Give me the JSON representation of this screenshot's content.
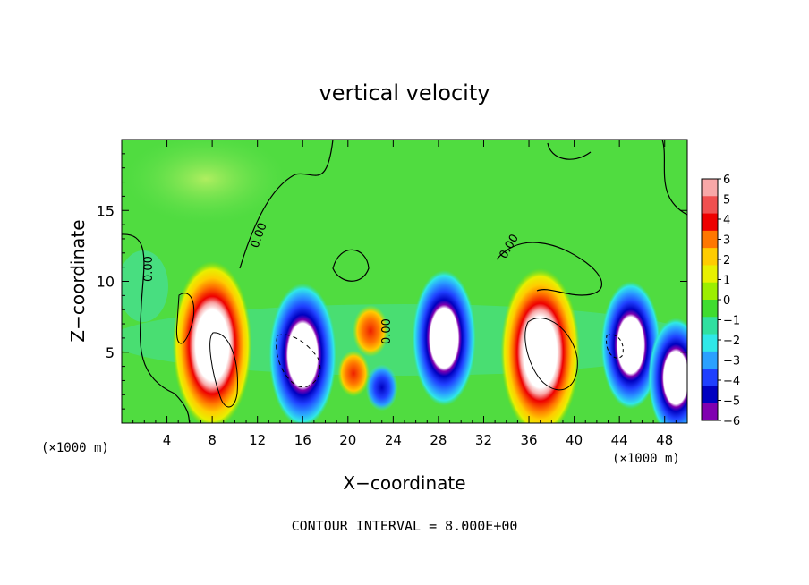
{
  "chart_data": {
    "type": "heatmap",
    "title": "vertical velocity",
    "xlabel": "X−coordinate",
    "ylabel": "Z−coordinate",
    "x_unit_left": "(×1000 m)",
    "x_unit_right": "(×1000 m)",
    "xlim": [
      0,
      50
    ],
    "ylim": [
      0,
      20
    ],
    "x_ticks": [
      4,
      8,
      12,
      16,
      20,
      24,
      28,
      32,
      36,
      40,
      44,
      48
    ],
    "y_ticks": [
      5,
      10,
      15
    ],
    "footer": "CONTOUR INTERVAL = 8.000E+00",
    "contour_label": "0.00",
    "colorbar": {
      "levels": [
        6,
        5,
        4,
        3,
        2,
        1,
        0,
        -1,
        -2,
        -3,
        -4,
        -5,
        -6
      ],
      "level_labels": [
        "6",
        "5",
        "4",
        "3",
        "2",
        "1",
        "0",
        "−1",
        "−2",
        "−3",
        "−4",
        "−5",
        "−6"
      ],
      "colors": [
        "#f8a8a8",
        "#f05050",
        "#ee0000",
        "#ff7700",
        "#ffcc00",
        "#e8f000",
        "#9cee00",
        "#40dc30",
        "#30e0a0",
        "#30e8e8",
        "#2aa0ff",
        "#1f40ff",
        "#0000c0",
        "#8000b0"
      ]
    },
    "features": [
      {
        "kind": "updraft",
        "center": [
          8,
          5.5
        ],
        "peak": 12
      },
      {
        "kind": "updraft",
        "center": [
          37,
          5
        ],
        "peak": 12
      },
      {
        "kind": "updraft",
        "center": [
          22,
          6.5
        ],
        "peak": 5
      },
      {
        "kind": "updraft",
        "center": [
          20.5,
          3.5
        ],
        "peak": 4
      },
      {
        "kind": "downdraft",
        "center": [
          16,
          4.8
        ],
        "peak": -9
      },
      {
        "kind": "downdraft",
        "center": [
          28.5,
          6
        ],
        "peak": -8
      },
      {
        "kind": "downdraft",
        "center": [
          45,
          5.5
        ],
        "peak": -7
      },
      {
        "kind": "downdraft",
        "center": [
          49,
          3.2
        ],
        "peak": -6
      },
      {
        "kind": "downdraft",
        "center": [
          23,
          2.5
        ],
        "peak": -4
      }
    ]
  }
}
